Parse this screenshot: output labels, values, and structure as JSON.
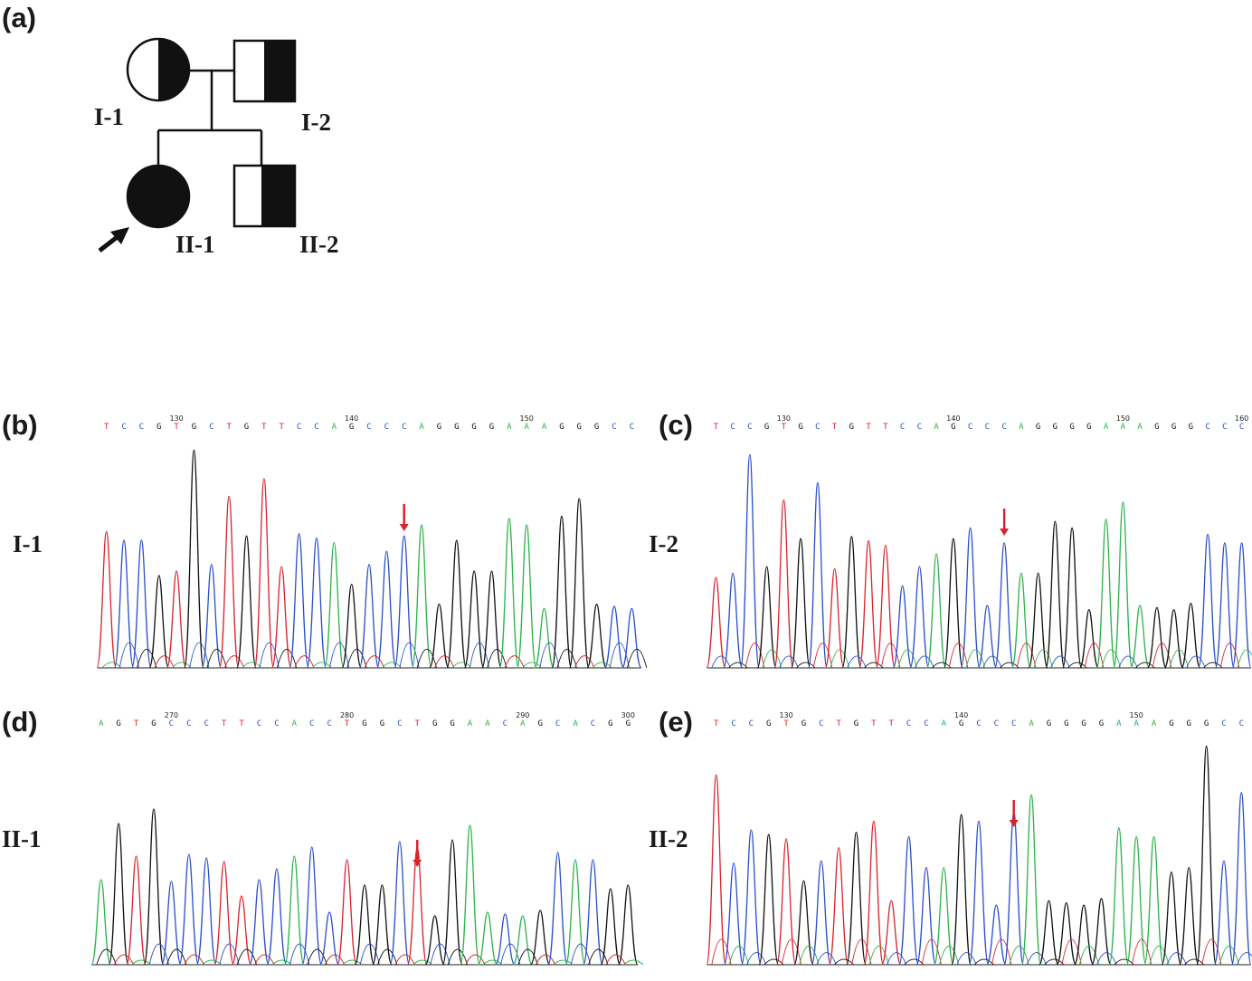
{
  "panels": {
    "a": "(a)",
    "b": "(b)",
    "c": "(c)",
    "d": "(d)",
    "e": "(e)"
  },
  "pedigree": {
    "labels": {
      "I1": "I-1",
      "I2": "I-2",
      "II1": "II-1",
      "II2": "II-2"
    }
  },
  "chromatograms": {
    "b": {
      "individual": "I-1",
      "sequence": "TCCGTGCTGTTCCAGCCCAGGGGAAAGGGCC",
      "positions": [
        "130",
        "140",
        "150"
      ]
    },
    "c": {
      "individual": "I-2",
      "sequence": "TCCGTGCTGTTCCAGCCCAGGGGAAAGGGCCC",
      "positions": [
        "130",
        "140",
        "150",
        "160"
      ]
    },
    "d": {
      "individual": "II-1",
      "sequence": "AGTGCCCTTCCACCTGGCTGGAACAGCACGG",
      "positions": [
        "270",
        "280",
        "290",
        "300"
      ]
    },
    "e": {
      "individual": "II-2",
      "sequence": "TCCGTGCTGTTCCAGCCCAGGGGAAAGGGCC",
      "positions": [
        "130",
        "140",
        "150"
      ]
    }
  },
  "colors": {
    "A": "#2bb34a",
    "C": "#2a4fc9",
    "G": "#111111",
    "T": "#d8242c",
    "arrow": "#d8242c"
  }
}
